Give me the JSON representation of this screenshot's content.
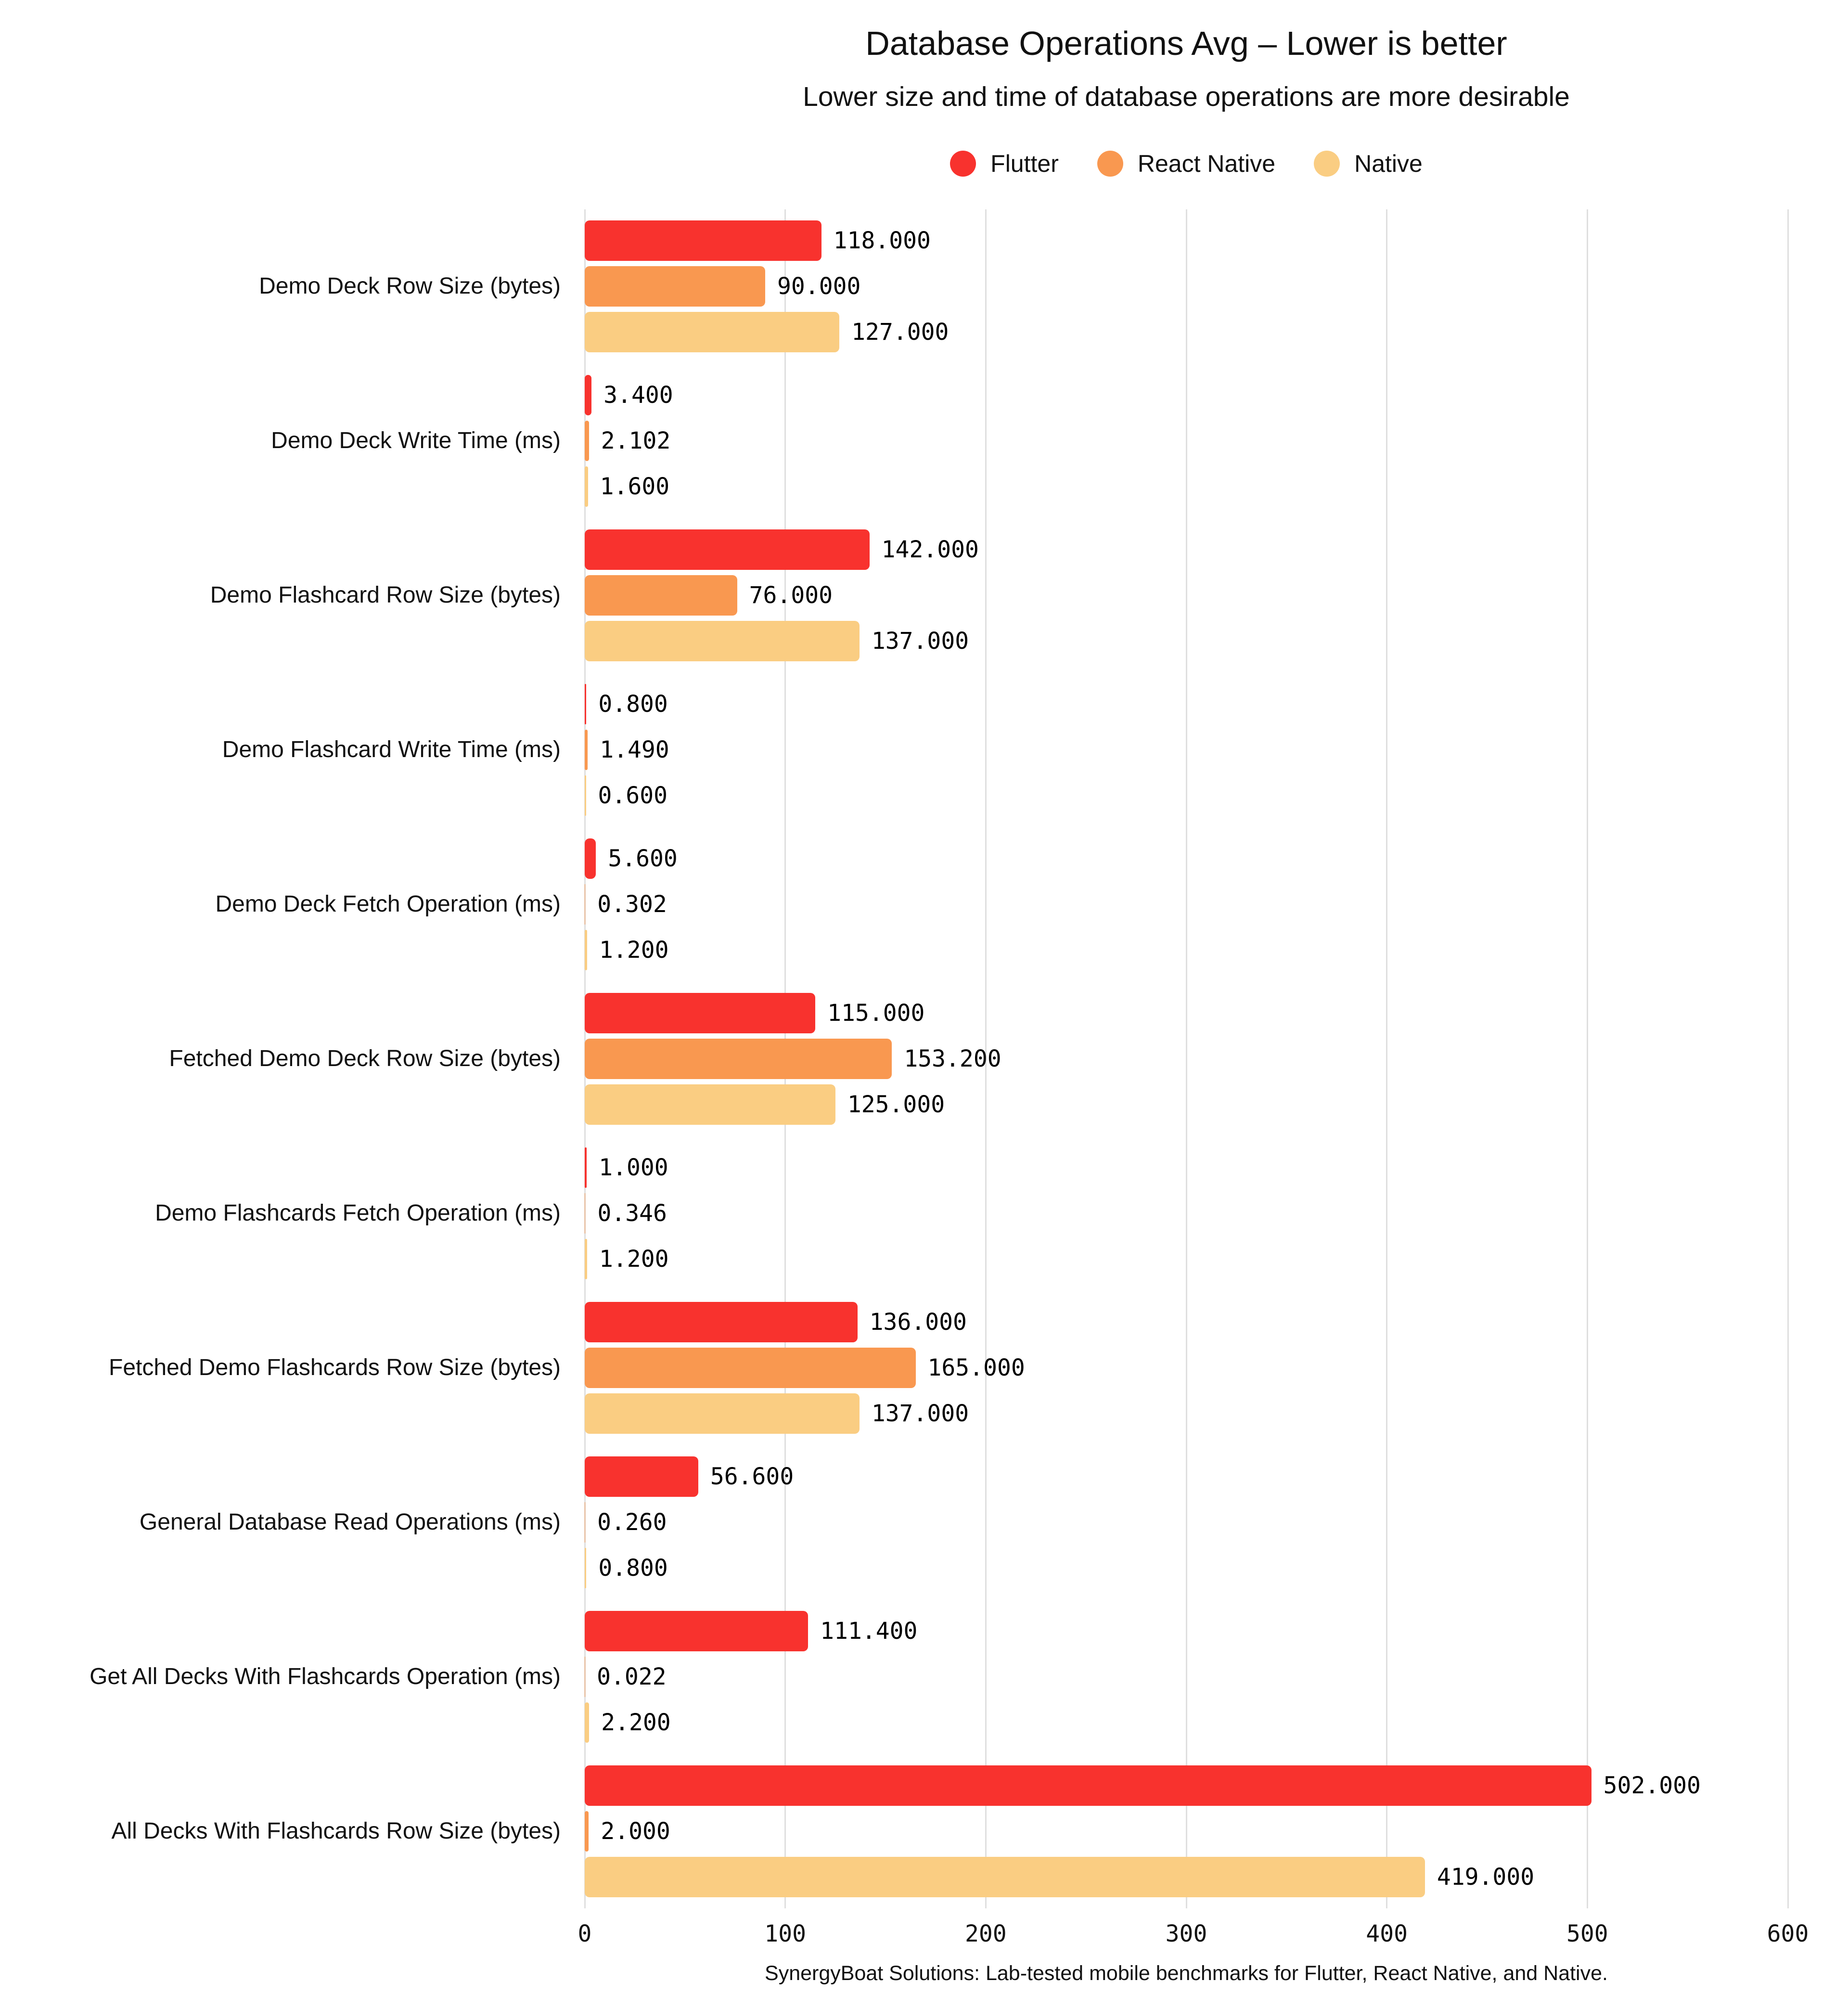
{
  "title": "Database Operations Avg – Lower is better",
  "subtitle": "Lower size and time of database operations are more desirable",
  "footer": "SynergyBoat Solutions: Lab-tested mobile benchmarks for Flutter, React Native, and Native.",
  "colors": {
    "flutter": "#F8322E",
    "react_native": "#F99850",
    "native": "#FACD82",
    "gridline": "#DFDFDF",
    "text": "#111111"
  },
  "chart_data": {
    "type": "bar",
    "orientation": "horizontal",
    "title": "Database Operations Avg – Lower is better",
    "subtitle": "Lower size and time of database operations are more desirable",
    "grid": "vertical",
    "legend_position": "top",
    "legend": [
      "Flutter",
      "React Native",
      "Native"
    ],
    "x_axis": {
      "min": 0,
      "max": 600,
      "ticks": [
        0,
        100,
        200,
        300,
        400,
        500,
        600
      ],
      "tick_labels": [
        "0",
        "100",
        "200",
        "300",
        "400",
        "500",
        "600"
      ]
    },
    "categories": [
      "Demo Deck Row Size (bytes)",
      "Demo Deck Write Time (ms)",
      "Demo Flashcard Row Size (bytes)",
      "Demo Flashcard Write Time (ms)",
      "Demo Deck Fetch Operation (ms)",
      "Fetched Demo Deck Row Size (bytes)",
      "Demo Flashcards Fetch Operation (ms)",
      "Fetched Demo Flashcards Row Size (bytes)",
      "General Database Read Operations (ms)",
      "Get All Decks With Flashcards Operation (ms)",
      "All Decks With Flashcards Row Size (bytes)"
    ],
    "series": [
      {
        "name": "Flutter",
        "color_key": "flutter",
        "values": [
          118,
          3.4,
          142,
          0.8,
          5.6,
          115,
          1.0,
          136,
          56.6,
          111.4,
          502
        ],
        "labels": [
          "118.000",
          "3.400",
          "142.000",
          "0.800",
          "5.600",
          "115.000",
          "1.000",
          "136.000",
          "56.600",
          "111.400",
          "502.000"
        ]
      },
      {
        "name": "React Native",
        "color_key": "react_native",
        "values": [
          90,
          2.102,
          76,
          1.49,
          0.302,
          153.2,
          0.346,
          165,
          0.26,
          0.022,
          2
        ],
        "labels": [
          "90.000",
          "2.102",
          "76.000",
          "1.490",
          "0.302",
          "153.200",
          "0.346",
          "165.000",
          "0.260",
          "0.022",
          "2.000"
        ]
      },
      {
        "name": "Native",
        "color_key": "native",
        "values": [
          127,
          1.6,
          137,
          0.6,
          1.2,
          125,
          1.2,
          137,
          0.8,
          2.2,
          419
        ],
        "labels": [
          "127.000",
          "1.600",
          "137.000",
          "0.600",
          "1.200",
          "125.000",
          "1.200",
          "137.000",
          "0.800",
          "2.200",
          "419.000"
        ]
      }
    ]
  }
}
